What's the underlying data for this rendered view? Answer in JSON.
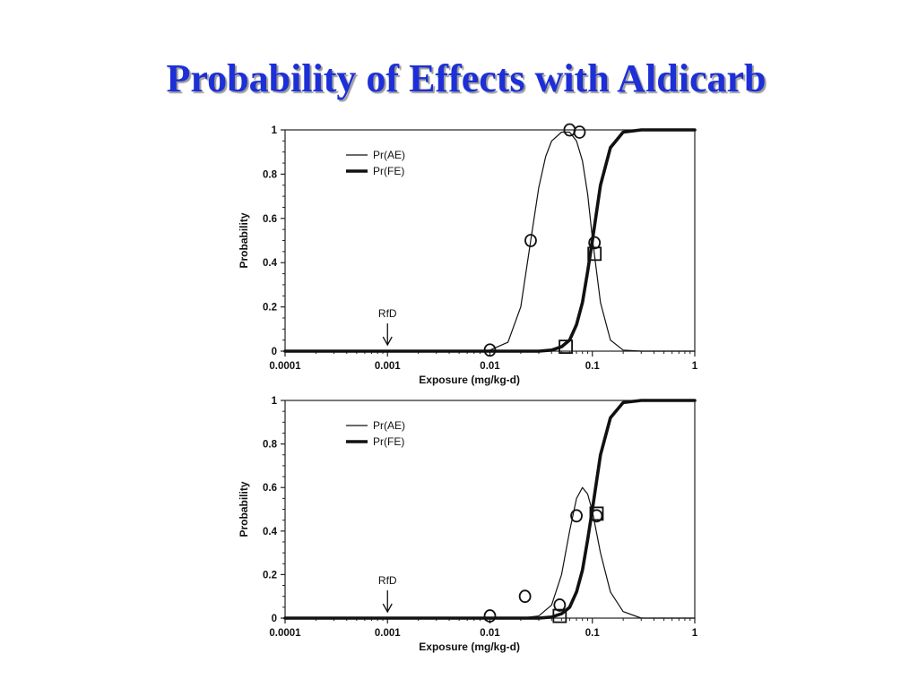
{
  "slide": {
    "title": "Probability of Effects with Aldicarb",
    "title_color": "#1d2fd6"
  },
  "chart_data": [
    {
      "type": "line",
      "xscale": "log",
      "xlim": [
        0.0001,
        1
      ],
      "ylim": [
        0,
        1
      ],
      "xlabel": "Exposure (mg/kg-d)",
      "ylabel": "Probability",
      "x_ticks": [
        "0.0001",
        "0.001",
        "0.01",
        "0.1",
        "1"
      ],
      "y_ticks": [
        "0",
        "0.2",
        "0.4",
        "0.6",
        "0.8",
        "1"
      ],
      "legend_position": "top-left",
      "series": [
        {
          "name": "Pr(AE)",
          "style": "thin",
          "x": [
            0.0001,
            0.005,
            0.01,
            0.015,
            0.02,
            0.025,
            0.03,
            0.035,
            0.04,
            0.05,
            0.06,
            0.07,
            0.08,
            0.09,
            0.1,
            0.12,
            0.15,
            0.2,
            0.3,
            1
          ],
          "y": [
            0,
            0,
            0.005,
            0.04,
            0.2,
            0.5,
            0.74,
            0.88,
            0.95,
            0.99,
            0.99,
            0.95,
            0.86,
            0.71,
            0.51,
            0.22,
            0.05,
            0.005,
            0,
            0
          ]
        },
        {
          "name": "Pr(FE)",
          "style": "thick",
          "x": [
            0.0001,
            0.03,
            0.04,
            0.05,
            0.06,
            0.07,
            0.08,
            0.09,
            0.1,
            0.12,
            0.15,
            0.2,
            0.3,
            1
          ],
          "y": [
            0,
            0,
            0.005,
            0.02,
            0.05,
            0.12,
            0.22,
            0.36,
            0.5,
            0.75,
            0.92,
            0.99,
            1,
            1
          ]
        }
      ],
      "observed_circles": [
        {
          "x": 0.01,
          "y": 0.005
        },
        {
          "x": 0.025,
          "y": 0.5
        },
        {
          "x": 0.06,
          "y": 1
        },
        {
          "x": 0.075,
          "y": 0.99
        },
        {
          "x": 0.105,
          "y": 0.49
        }
      ],
      "observed_squares": [
        {
          "x": 0.055,
          "y": 0.02
        },
        {
          "x": 0.105,
          "y": 0.44
        }
      ],
      "annotations": [
        {
          "text": "RfD",
          "x": 0.001
        }
      ]
    },
    {
      "type": "line",
      "xscale": "log",
      "xlim": [
        0.0001,
        1
      ],
      "ylim": [
        0,
        1
      ],
      "xlabel": "Exposure (mg/kg-d)",
      "ylabel": "Probability",
      "x_ticks": [
        "0.0001",
        "0.001",
        "0.01",
        "0.1",
        "1"
      ],
      "y_ticks": [
        "0",
        "0.2",
        "0.4",
        "0.6",
        "0.8",
        "1"
      ],
      "legend_position": "top-left",
      "series": [
        {
          "name": "Pr(AE)",
          "style": "thin",
          "x": [
            0.0001,
            0.02,
            0.03,
            0.04,
            0.05,
            0.06,
            0.07,
            0.08,
            0.09,
            0.1,
            0.12,
            0.15,
            0.2,
            0.3,
            1
          ],
          "y": [
            0,
            0,
            0.01,
            0.06,
            0.2,
            0.4,
            0.55,
            0.6,
            0.57,
            0.49,
            0.3,
            0.12,
            0.03,
            0,
            0
          ]
        },
        {
          "name": "Pr(FE)",
          "style": "thick",
          "x": [
            0.0001,
            0.03,
            0.04,
            0.05,
            0.06,
            0.07,
            0.08,
            0.09,
            0.1,
            0.12,
            0.15,
            0.2,
            0.3,
            1
          ],
          "y": [
            0,
            0,
            0.005,
            0.02,
            0.05,
            0.12,
            0.22,
            0.36,
            0.5,
            0.75,
            0.92,
            0.99,
            1,
            1
          ]
        }
      ],
      "observed_circles": [
        {
          "x": 0.01,
          "y": 0.01
        },
        {
          "x": 0.022,
          "y": 0.1
        },
        {
          "x": 0.048,
          "y": 0.06
        },
        {
          "x": 0.07,
          "y": 0.47
        },
        {
          "x": 0.11,
          "y": 0.47
        }
      ],
      "observed_squares": [
        {
          "x": 0.048,
          "y": 0.01
        },
        {
          "x": 0.11,
          "y": 0.48
        }
      ],
      "annotations": [
        {
          "text": "RfD",
          "x": 0.001
        }
      ]
    }
  ]
}
